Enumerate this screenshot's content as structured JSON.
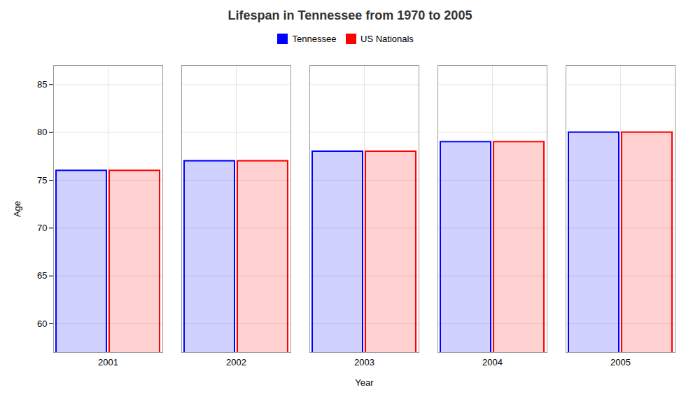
{
  "chart_data": {
    "type": "bar",
    "title": "Lifespan in Tennessee from 1970 to 2005",
    "xlabel": "Year",
    "ylabel": "Age",
    "categories": [
      "2001",
      "2002",
      "2003",
      "2004",
      "2005"
    ],
    "series": [
      {
        "name": "Tennessee",
        "color": "#0000FF",
        "values": [
          76,
          77,
          78,
          79,
          80
        ]
      },
      {
        "name": "US Nationals",
        "color": "#FF0000",
        "values": [
          76,
          77,
          78,
          79,
          80
        ]
      }
    ],
    "ylim": [
      57,
      87
    ],
    "yticks": [
      60,
      65,
      70,
      75,
      80,
      85
    ],
    "grid": true,
    "legend": "top"
  }
}
